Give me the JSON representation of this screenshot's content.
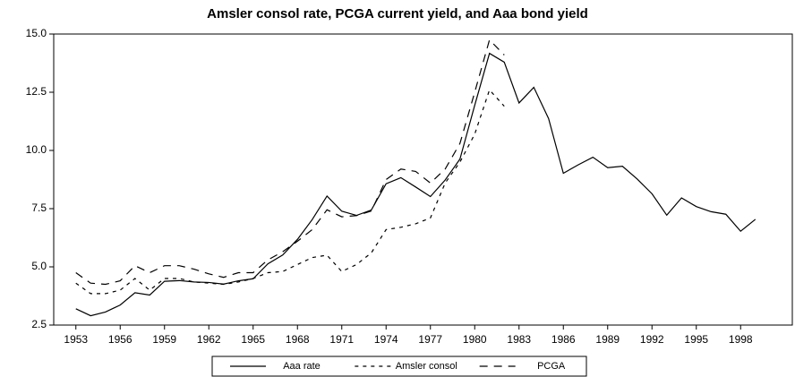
{
  "chart_data": {
    "type": "line",
    "title": "Amsler consol rate, PCGA current yield, and Aaa bond yield",
    "x": [
      1953,
      1954,
      1955,
      1956,
      1957,
      1958,
      1959,
      1960,
      1961,
      1962,
      1963,
      1964,
      1965,
      1966,
      1967,
      1968,
      1969,
      1970,
      1971,
      1972,
      1973,
      1974,
      1975,
      1976,
      1977,
      1978,
      1979,
      1980,
      1981,
      1982,
      1983,
      1984,
      1985,
      1986,
      1987,
      1988,
      1989,
      1990,
      1991,
      1992,
      1993,
      1994,
      1995,
      1996,
      1997,
      1998,
      1999
    ],
    "series": [
      {
        "name": "Aaa rate",
        "color": "#000000",
        "dash": "none",
        "values": [
          3.2,
          2.9,
          3.06,
          3.36,
          3.89,
          3.79,
          4.38,
          4.41,
          4.35,
          4.33,
          4.26,
          4.4,
          4.49,
          5.13,
          5.51,
          6.18,
          7.03,
          8.04,
          7.39,
          7.21,
          7.44,
          8.57,
          8.83,
          8.43,
          8.02,
          8.73,
          9.63,
          11.94,
          14.17,
          13.79,
          12.04,
          12.71,
          11.37,
          9.02,
          9.38,
          9.71,
          9.26,
          9.32,
          8.77,
          8.14,
          7.22,
          7.96,
          7.59,
          7.37,
          7.26,
          6.53,
          7.04
        ]
      },
      {
        "name": "Amsler consol",
        "color": "#000000",
        "dash": "4 5",
        "values": [
          4.3,
          3.85,
          3.85,
          4.0,
          4.5,
          4.0,
          4.5,
          4.5,
          4.35,
          4.3,
          4.25,
          4.35,
          4.5,
          4.75,
          4.8,
          5.1,
          5.4,
          5.5,
          4.8,
          5.1,
          5.6,
          6.6,
          6.7,
          6.85,
          7.1,
          8.6,
          9.5,
          10.7,
          12.6,
          11.9,
          null,
          null,
          null,
          null,
          null,
          null,
          null,
          null,
          null,
          null,
          null,
          null,
          null,
          null,
          null,
          null,
          null
        ]
      },
      {
        "name": "PCGA",
        "color": "#000000",
        "dash": "9 7",
        "values": [
          4.75,
          4.3,
          4.25,
          4.4,
          5.05,
          4.75,
          5.05,
          5.05,
          4.9,
          4.7,
          4.55,
          4.75,
          4.75,
          5.3,
          5.65,
          6.1,
          6.6,
          7.45,
          7.15,
          7.2,
          7.4,
          8.75,
          9.2,
          9.1,
          8.6,
          9.2,
          10.3,
          12.5,
          14.75,
          14.1,
          null,
          null,
          null,
          null,
          null,
          null,
          null,
          null,
          null,
          null,
          null,
          null,
          null,
          null,
          null,
          null,
          null
        ]
      }
    ],
    "xlim": [
      1951.5,
      2001.5
    ],
    "xticks": [
      1953,
      1956,
      1959,
      1962,
      1965,
      1968,
      1971,
      1974,
      1977,
      1980,
      1983,
      1986,
      1989,
      1992,
      1995,
      1998
    ],
    "ylim": [
      2.5,
      15
    ],
    "yticks": [
      {
        "value": 2.5,
        "label": "2.5"
      },
      {
        "value": 5,
        "label": "5.0"
      },
      {
        "value": 7.5,
        "label": "7.5"
      },
      {
        "value": 10,
        "label": "10.0"
      },
      {
        "value": 12.5,
        "label": "12.5"
      },
      {
        "value": 15,
        "label": "15.0"
      }
    ],
    "grid": false,
    "legend": "bottom"
  }
}
